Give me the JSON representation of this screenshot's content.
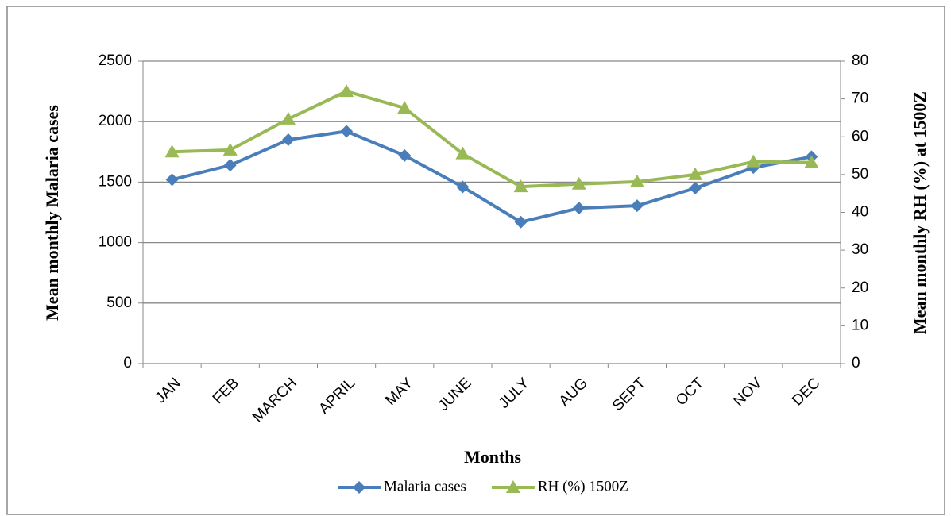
{
  "chart_data": {
    "type": "line",
    "x_title": "Months",
    "y_title": "Mean monthly  Malaria cases",
    "y2_title": "Mean monthly RH (%) at 1500Z",
    "categories": [
      "JAN",
      "FEB",
      "MARCH",
      "APRIL",
      "MAY",
      "JUNE",
      "JULY",
      "AUG",
      "SEPT",
      "OCT",
      "NOV",
      "DEC"
    ],
    "series": [
      {
        "name": "Malaria cases",
        "color": "#4a7ebb",
        "marker": "diamond",
        "values": [
          1520,
          1640,
          1850,
          1920,
          1720,
          1460,
          1170,
          1285,
          1305,
          1450,
          1620,
          1710
        ]
      },
      {
        "name": "RH (%) 1500Z",
        "color": "#98b954",
        "marker": "triangle",
        "axis": "y2",
        "values": [
          56,
          56.5,
          64.7,
          72,
          67.6,
          55.5,
          46.8,
          47.5,
          48.1,
          50,
          53.4,
          53.2
        ]
      }
    ],
    "ylim": [
      0,
      2500
    ],
    "yticks": [
      0,
      500,
      1000,
      1500,
      2000,
      2500
    ],
    "y2lim": [
      0,
      80
    ],
    "y2ticks": [
      0,
      10,
      20,
      30,
      40,
      50,
      60,
      70,
      80
    ],
    "grid": true,
    "legend": "bottom"
  }
}
